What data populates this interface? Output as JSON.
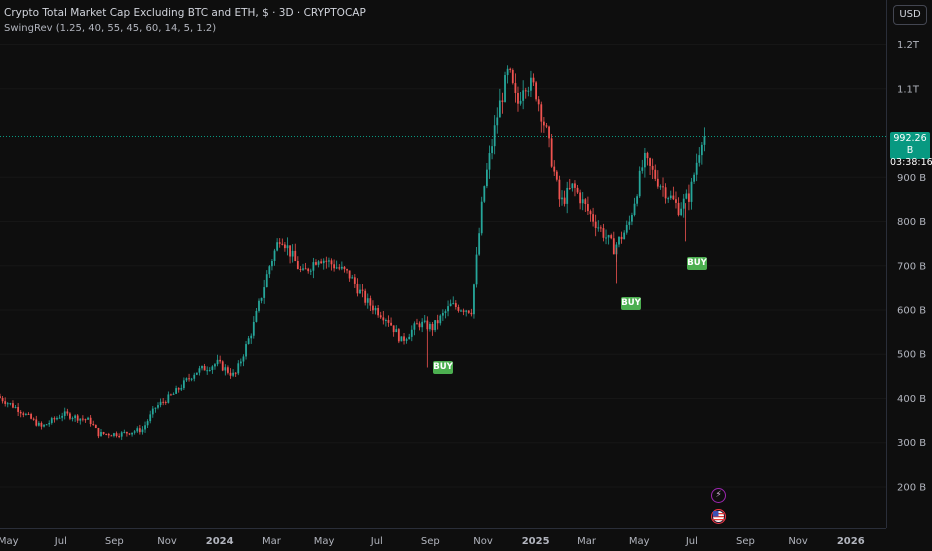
{
  "legend": {
    "title": "Crypto Total Market Cap Excluding BTC and ETH, $ · 3D · CRYPTOCAP",
    "indicator": "SwingRev (1.25, 40, 55, 45, 60, 14, 5, 1.2)"
  },
  "currency_button": "USD",
  "last_price": {
    "value": "992.26 B",
    "countdown": "03:38:16"
  },
  "signals": [
    {
      "label": "BUY"
    },
    {
      "label": "BUY"
    },
    {
      "label": "BUY"
    }
  ],
  "events": [
    "lightning-icon",
    "us-flag-icon"
  ],
  "colors": {
    "background": "#0e0e0e",
    "up": "#26a69a",
    "down": "#ef5350",
    "buy": "#4caf50",
    "price_line": "#089981"
  },
  "chart_data": {
    "type": "candlestick",
    "y_ticks": [
      "1.2T",
      "1.1T",
      "900 B",
      "800 B",
      "700 B",
      "600 B",
      "500 B",
      "400 B",
      "300 B",
      "200 B"
    ],
    "x_ticks": [
      "May",
      "Jul",
      "Sep",
      "Nov",
      "2024",
      "Mar",
      "May",
      "Jul",
      "Sep",
      "Nov",
      "2025",
      "Mar",
      "May",
      "Jul",
      "Sep",
      "Nov",
      "2026"
    ],
    "ylim": [
      140,
      1300
    ],
    "x_range": [
      "2023-04-25",
      "2026-02-10"
    ],
    "last_value": 992.26,
    "unit": "B",
    "path_dates": [
      "2023-04-25",
      "2023-05-20",
      "2023-06-15",
      "2023-07-10",
      "2023-08-10",
      "2023-08-20",
      "2023-09-15",
      "2023-10-10",
      "2023-10-25",
      "2023-11-15",
      "2023-12-10",
      "2024-01-05",
      "2024-01-25",
      "2024-02-15",
      "2024-03-05",
      "2024-03-18",
      "2024-04-12",
      "2024-05-01",
      "2024-05-20",
      "2024-06-05",
      "2024-06-25",
      "2024-07-20",
      "2024-08-05",
      "2024-08-25",
      "2024-09-10",
      "2024-10-01",
      "2024-10-25",
      "2024-11-08",
      "2024-11-25",
      "2024-12-07",
      "2024-12-17",
      "2024-12-25",
      "2025-01-07",
      "2025-01-20",
      "2025-02-05",
      "2025-02-20",
      "2025-03-10",
      "2025-04-08",
      "2025-04-25",
      "2025-05-13",
      "2025-05-30",
      "2025-06-22",
      "2025-07-05",
      "2025-07-19"
    ],
    "path_values": [
      405,
      375,
      335,
      365,
      350,
      320,
      320,
      330,
      380,
      410,
      460,
      480,
      450,
      560,
      700,
      770,
      680,
      720,
      700,
      680,
      620,
      580,
      530,
      570,
      560,
      610,
      600,
      870,
      1050,
      1140,
      1060,
      1120,
      1100,
      1000,
      840,
      880,
      820,
      740,
      790,
      940,
      890,
      830,
      860,
      992
    ]
  },
  "signal_dates": [
    "2024-09-01",
    "2025-04-08",
    "2025-06-27"
  ]
}
